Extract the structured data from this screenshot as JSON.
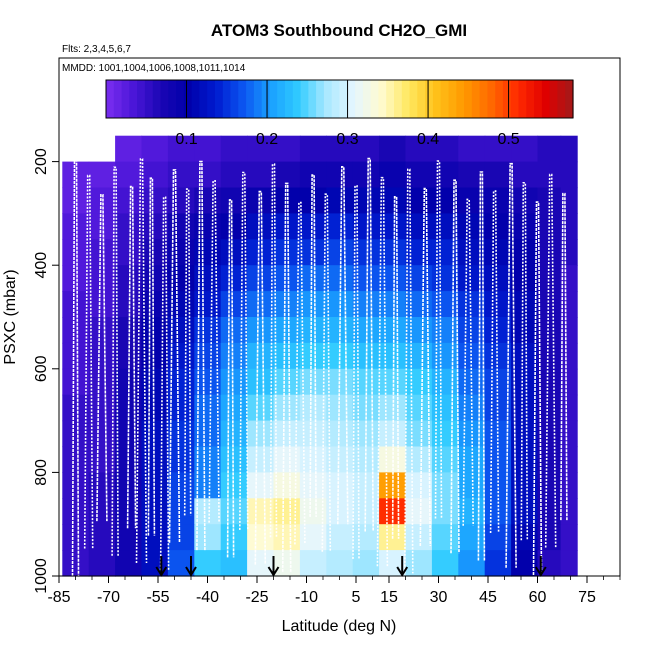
{
  "chart_data": {
    "type": "heatmap",
    "title": "ATOM3 Southbound CH2O_GMI",
    "flights_note": "Flts: 2,3,4,5,6,7",
    "dates_note": "MMDD: 1001,1004,1006,1008,1011,1014",
    "xlabel": "Latitude (deg N)",
    "ylabel": "PSXC (mbar)",
    "xlim": [
      -85,
      85
    ],
    "ylim": [
      1000,
      0
    ],
    "x_ticks": [
      -85,
      -70,
      -55,
      -40,
      -25,
      -10,
      5,
      15,
      30,
      45,
      60,
      75
    ],
    "x_tick_labels": [
      "-85",
      "-70",
      "-55",
      "-40",
      "-25",
      "-10",
      "5",
      "15",
      "30",
      "45",
      "60",
      "75"
    ],
    "y_ticks": [
      200,
      400,
      600,
      800,
      1000
    ],
    "y_tick_labels": [
      "200",
      "400",
      "600",
      "800",
      "1000"
    ],
    "colorbar": {
      "range": [
        0,
        0.58
      ],
      "ticks": [
        0.1,
        0.2,
        0.3,
        0.4,
        0.5
      ],
      "tick_labels": [
        "0.1",
        "0.2",
        "0.3",
        "0.4",
        "0.5"
      ],
      "colors": [
        "#7b2ff0",
        "#4b16d8",
        "#1a06b4",
        "#0000aa",
        "#001bd0",
        "#0b55f0",
        "#1aa0ff",
        "#30cbff",
        "#a8e8ff",
        "#e4f6ff",
        "#fffbd2",
        "#ffe860",
        "#ffc21a",
        "#ff9a00",
        "#ff6a00",
        "#ff2a00",
        "#e00000",
        "#a21a1a"
      ]
    },
    "marker_latitudes": [
      -54,
      -45,
      -20,
      19,
      61
    ],
    "lat_columns": [
      -80,
      -72,
      -64,
      -56,
      -48,
      -40,
      -32,
      -24,
      -16,
      -8,
      0,
      8,
      16,
      24,
      32,
      40,
      48,
      56,
      64,
      70
    ],
    "pressure_levels": [
      175,
      225,
      275,
      325,
      375,
      425,
      475,
      525,
      575,
      625,
      675,
      725,
      775,
      825,
      875,
      925,
      975
    ],
    "values": [
      [
        null,
        null,
        0.02,
        0.03,
        0.04,
        0.04,
        0.05,
        0.05,
        0.05,
        0.06,
        0.06,
        0.06,
        0.07,
        0.06,
        0.06,
        0.05,
        0.05,
        0.05,
        0.06,
        0.06
      ],
      [
        0.02,
        0.02,
        0.03,
        0.04,
        0.05,
        0.05,
        0.06,
        0.06,
        0.07,
        0.08,
        0.08,
        0.08,
        0.09,
        0.08,
        0.08,
        0.07,
        0.07,
        0.06,
        0.06,
        0.06
      ],
      [
        0.02,
        0.03,
        0.04,
        0.05,
        0.06,
        0.07,
        0.08,
        0.09,
        0.1,
        0.1,
        0.11,
        0.11,
        0.11,
        0.1,
        0.1,
        0.09,
        0.09,
        0.08,
        0.07,
        0.06
      ],
      [
        0.03,
        0.03,
        0.05,
        0.06,
        0.08,
        0.09,
        0.1,
        0.12,
        0.13,
        0.13,
        0.14,
        0.13,
        0.13,
        0.12,
        0.12,
        0.11,
        0.1,
        0.09,
        0.07,
        0.06
      ],
      [
        0.03,
        0.04,
        0.05,
        0.07,
        0.09,
        0.11,
        0.12,
        0.14,
        0.15,
        0.15,
        0.16,
        0.15,
        0.15,
        0.14,
        0.14,
        0.12,
        0.11,
        0.1,
        0.07,
        0.06
      ],
      [
        0.03,
        0.04,
        0.06,
        0.08,
        0.1,
        0.12,
        0.14,
        0.16,
        0.17,
        0.18,
        0.18,
        0.17,
        0.17,
        0.16,
        0.15,
        0.13,
        0.12,
        0.1,
        0.07,
        0.05
      ],
      [
        0.04,
        0.04,
        0.06,
        0.09,
        0.11,
        0.13,
        0.16,
        0.18,
        0.19,
        0.2,
        0.2,
        0.19,
        0.19,
        0.18,
        0.17,
        0.15,
        0.13,
        0.11,
        0.07,
        0.05
      ],
      [
        0.04,
        0.05,
        0.07,
        0.1,
        0.12,
        0.15,
        0.18,
        0.2,
        0.21,
        0.22,
        0.22,
        0.21,
        0.21,
        0.2,
        0.19,
        0.16,
        0.14,
        0.11,
        0.07,
        0.05
      ],
      [
        0.04,
        0.05,
        0.07,
        0.1,
        0.13,
        0.16,
        0.19,
        0.22,
        0.23,
        0.24,
        0.24,
        0.23,
        0.23,
        0.22,
        0.2,
        0.17,
        0.15,
        0.12,
        0.07,
        0.05
      ],
      [
        0.04,
        0.05,
        0.08,
        0.11,
        0.14,
        0.17,
        0.2,
        0.23,
        0.25,
        0.26,
        0.26,
        0.25,
        0.25,
        0.24,
        0.22,
        0.18,
        0.16,
        0.12,
        0.07,
        0.05
      ],
      [
        0.05,
        0.05,
        0.08,
        0.11,
        0.14,
        0.18,
        0.21,
        0.25,
        0.27,
        0.28,
        0.27,
        0.26,
        0.27,
        0.25,
        0.23,
        0.19,
        0.16,
        0.12,
        0.07,
        0.05
      ],
      [
        0.05,
        0.05,
        0.08,
        0.12,
        0.15,
        0.18,
        0.22,
        0.27,
        0.29,
        0.29,
        0.28,
        0.27,
        0.29,
        0.26,
        0.24,
        0.2,
        0.17,
        0.12,
        0.07,
        0.05
      ],
      [
        0.05,
        0.05,
        0.08,
        0.12,
        0.15,
        0.19,
        0.23,
        0.29,
        0.31,
        0.3,
        0.29,
        0.28,
        0.33,
        0.28,
        0.25,
        0.21,
        0.17,
        0.12,
        0.07,
        0.05
      ],
      [
        0.05,
        0.06,
        0.08,
        0.12,
        0.16,
        0.19,
        0.24,
        0.31,
        0.33,
        0.31,
        0.3,
        0.29,
        0.44,
        0.3,
        0.26,
        0.21,
        0.17,
        0.12,
        0.07,
        0.05
      ],
      [
        0.05,
        0.06,
        0.08,
        0.12,
        0.16,
        0.28,
        0.25,
        0.35,
        0.36,
        0.32,
        0.3,
        0.29,
        0.51,
        0.31,
        0.26,
        0.22,
        0.17,
        0.12,
        0.07,
        0.05
      ],
      [
        0.05,
        0.06,
        0.08,
        0.12,
        0.16,
        0.27,
        0.24,
        0.34,
        0.35,
        0.31,
        0.29,
        0.28,
        0.36,
        0.29,
        0.25,
        0.21,
        0.16,
        0.11,
        0.07,
        0.05
      ],
      [
        0.05,
        0.06,
        0.08,
        0.12,
        0.17,
        0.24,
        0.23,
        0.31,
        0.32,
        0.29,
        0.28,
        0.27,
        0.3,
        0.27,
        0.24,
        0.2,
        0.15,
        0.1,
        0.06,
        0.05
      ]
    ],
    "grid": false,
    "legend": "colorbar top"
  }
}
